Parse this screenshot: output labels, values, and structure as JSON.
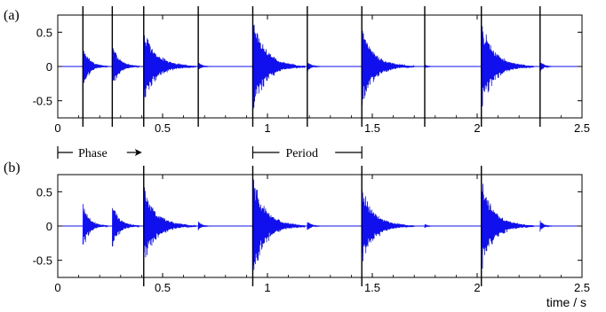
{
  "chart_data": [
    {
      "type": "line",
      "panel_label": "(a)",
      "xlim": [
        0,
        2.5
      ],
      "ylim": [
        -0.75,
        0.75
      ],
      "x_ticks": [
        0,
        0.5,
        1,
        1.5,
        2,
        2.5
      ],
      "x_tick_labels": [
        "0",
        "0.5",
        "1",
        "1.5",
        "2",
        "2.5"
      ],
      "y_ticks": [
        0.5,
        0,
        -0.5
      ],
      "y_tick_labels": [
        "0.5",
        "0",
        "-0.5"
      ],
      "grid": false,
      "vertical_lines_x": [
        0.12,
        0.26,
        0.41,
        0.67,
        0.93,
        1.19,
        1.45,
        1.75,
        2.02,
        2.3
      ],
      "series": [
        {
          "color": "#1010ee",
          "bursts": [
            {
              "x": 0.12,
              "amplitude": 0.38,
              "duration": 0.12
            },
            {
              "x": 0.26,
              "amplitude": 0.4,
              "duration": 0.13
            },
            {
              "x": 0.41,
              "amplitude": 0.62,
              "duration": 0.25
            },
            {
              "x": 0.67,
              "amplitude": 0.08,
              "duration": 0.06
            },
            {
              "x": 0.93,
              "amplitude": 0.8,
              "duration": 0.25
            },
            {
              "x": 1.19,
              "amplitude": 0.09,
              "duration": 0.07
            },
            {
              "x": 1.45,
              "amplitude": 0.62,
              "duration": 0.25
            },
            {
              "x": 1.75,
              "amplitude": 0.04,
              "duration": 0.04
            },
            {
              "x": 2.02,
              "amplitude": 0.73,
              "duration": 0.25
            },
            {
              "x": 2.3,
              "amplitude": 0.1,
              "duration": 0.06
            }
          ]
        }
      ]
    },
    {
      "type": "line",
      "panel_label": "(b)",
      "xlim": [
        0,
        2.5
      ],
      "ylim": [
        -0.75,
        0.75
      ],
      "x_ticks": [
        0,
        0.5,
        1,
        1.5,
        2,
        2.5
      ],
      "x_tick_labels": [
        "0",
        "0.5",
        "1",
        "1.5",
        "2",
        "2.5"
      ],
      "y_ticks": [
        0.5,
        0,
        -0.5
      ],
      "y_tick_labels": [
        "0.5",
        "0",
        "-0.5"
      ],
      "grid": false,
      "xlabel": "time / s",
      "vertical_lines_x": [
        0.41,
        0.93,
        1.45,
        2.02
      ],
      "series": [
        {
          "color": "#1010ee",
          "bursts": [
            {
              "x": 0.12,
              "amplitude": 0.38,
              "duration": 0.12
            },
            {
              "x": 0.26,
              "amplitude": 0.4,
              "duration": 0.13
            },
            {
              "x": 0.41,
              "amplitude": 0.62,
              "duration": 0.25
            },
            {
              "x": 0.67,
              "amplitude": 0.08,
              "duration": 0.06
            },
            {
              "x": 0.93,
              "amplitude": 0.8,
              "duration": 0.25
            },
            {
              "x": 1.19,
              "amplitude": 0.09,
              "duration": 0.07
            },
            {
              "x": 1.45,
              "amplitude": 0.62,
              "duration": 0.25
            },
            {
              "x": 1.75,
              "amplitude": 0.04,
              "duration": 0.04
            },
            {
              "x": 2.02,
              "amplitude": 0.73,
              "duration": 0.25
            },
            {
              "x": 2.3,
              "amplitude": 0.1,
              "duration": 0.06
            }
          ]
        }
      ]
    }
  ],
  "annotations": {
    "phase": {
      "label": "Phase",
      "x_start": 0.0,
      "x_end": 0.41
    },
    "period": {
      "label": "Period",
      "x_start": 0.93,
      "x_end": 1.45
    }
  }
}
